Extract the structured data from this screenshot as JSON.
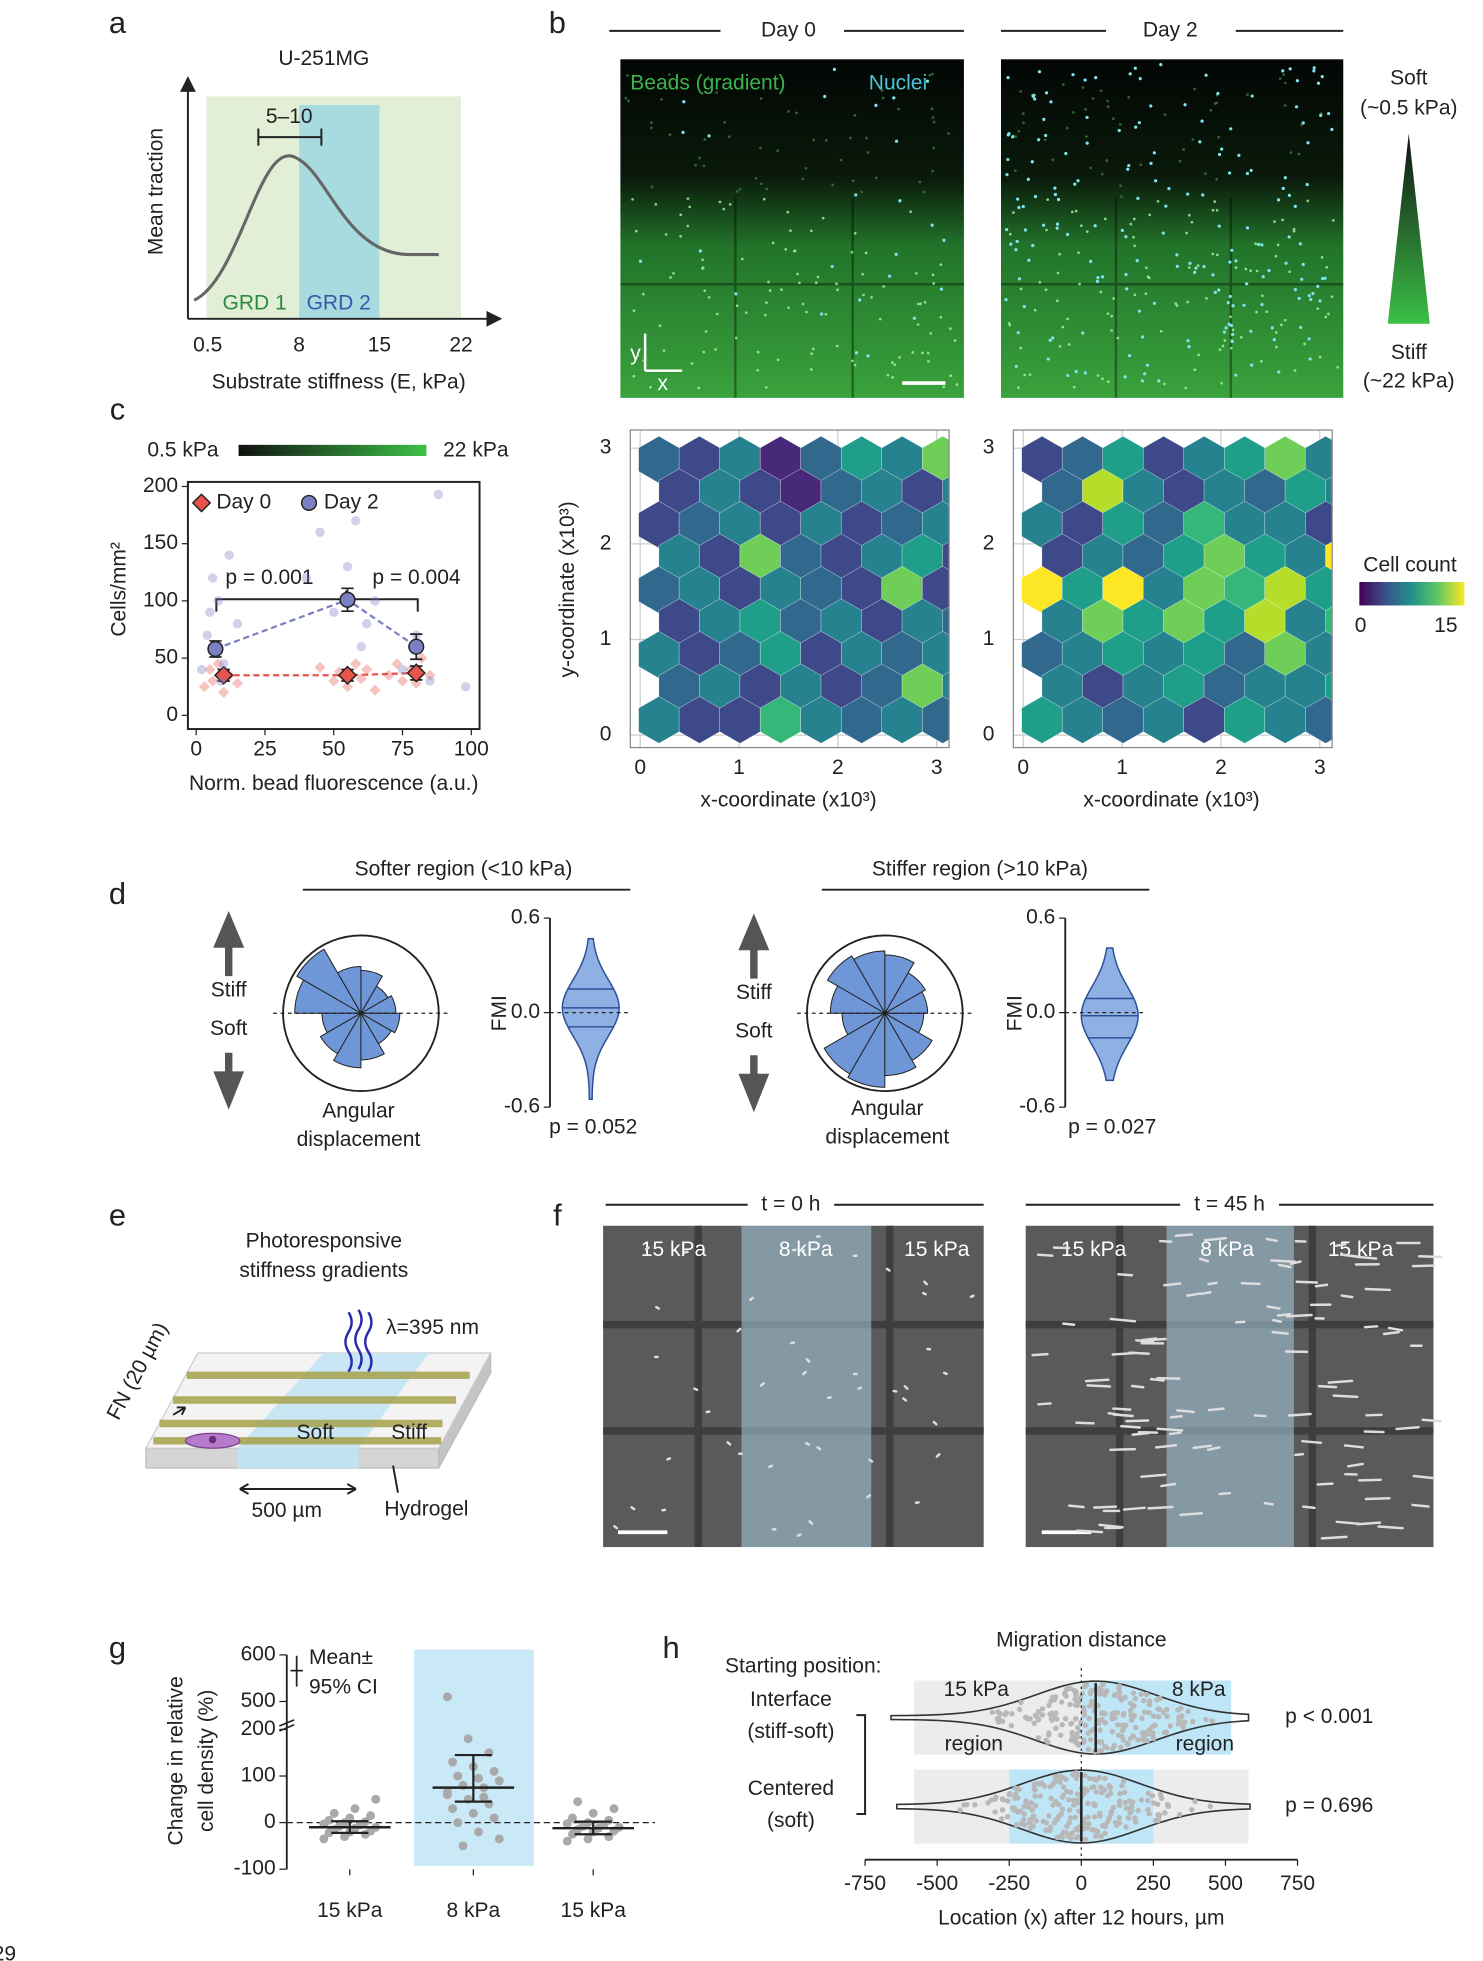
{
  "page_number": "29",
  "panel_labels": [
    "a",
    "b",
    "c",
    "d",
    "e",
    "f",
    "g",
    "h"
  ],
  "a": {
    "title": "U-251MG",
    "y_label": "Mean traction",
    "x_label": "Substrate stiffness (E, kPa)",
    "x_ticks": [
      "0.5",
      "8",
      "15",
      "22"
    ],
    "peak_range": "5–10",
    "regions": [
      "GRD 1",
      "GRD 2"
    ]
  },
  "b": {
    "columns": [
      "Day 0",
      "Day 2"
    ],
    "channels": [
      "Beads (gradient)",
      "Nuclei"
    ],
    "axes": [
      "y",
      "x"
    ],
    "soft": [
      "Soft",
      "(~0.5 kPa)"
    ],
    "stiff": [
      "Stiff",
      "(~22 kPa)"
    ],
    "hexbin": {
      "type": "hexbin",
      "x_label": "x-coordinate (x10³)",
      "y_label": "y-coordinate (x10³)",
      "xlim": [
        -0.1,
        3.125
      ],
      "ylim": [
        -0.13,
        3.19
      ],
      "xticks": [
        0,
        1,
        2,
        3
      ],
      "yticks": [
        0,
        1,
        2,
        3
      ],
      "colorbar_title": "Cell count",
      "clim": [
        0,
        15
      ],
      "panels": [
        {
          "counts": [
            [
              5,
              3,
              6,
              2,
              5,
              8,
              7,
              11
            ],
            [
              4,
              6,
              3,
              2,
              5,
              7,
              4,
              6
            ],
            [
              3,
              5,
              6,
              4,
              7,
              3,
              5,
              6
            ],
            [
              6,
              4,
              11,
              5,
              4,
              7,
              9,
              3
            ],
            [
              5,
              7,
              3,
              6,
              5,
              4,
              12,
              3
            ],
            [
              4,
              6,
              9,
              5,
              7,
              3,
              6,
              5
            ],
            [
              7,
              3,
              5,
              8,
              4,
              6,
              5,
              7
            ],
            [
              5,
              6,
              4,
              7,
              3,
              5,
              11,
              6
            ],
            [
              6,
              4,
              3,
              10,
              6,
              5,
              7,
              5
            ]
          ]
        },
        {
          "counts": [
            [
              4,
              5,
              9,
              3,
              6,
              8,
              12,
              7
            ],
            [
              5,
              13,
              6,
              4,
              7,
              5,
              9,
              6
            ],
            [
              6,
              4,
              8,
              5,
              10,
              6,
              7,
              4
            ],
            [
              4,
              7,
              5,
              9,
              11,
              8,
              6,
              15
            ],
            [
              15,
              9,
              15,
              7,
              12,
              10,
              13,
              8
            ],
            [
              6,
              11,
              8,
              12,
              9,
              13,
              7,
              10
            ],
            [
              5,
              7,
              9,
              6,
              8,
              5,
              11,
              6
            ],
            [
              7,
              4,
              6,
              8,
              5,
              7,
              6,
              9
            ],
            [
              9,
              6,
              5,
              7,
              4,
              8,
              6,
              5
            ]
          ]
        }
      ]
    }
  },
  "c": {
    "type": "scatter",
    "colorbar_labels": [
      "0.5 kPa",
      "22 kPa"
    ],
    "x_label": "Norm. bead fluorescence (a.u.)",
    "y_label": "Cells/mm²",
    "xlim": [
      -3,
      103
    ],
    "ylim": [
      -12,
      204
    ],
    "xticks": [
      0,
      25,
      50,
      75,
      100
    ],
    "yticks": [
      0,
      50,
      100,
      150,
      200
    ],
    "annotations": [
      "p = 0.001",
      "p = 0.004"
    ],
    "series": [
      {
        "name": "Day 0",
        "color": "#e8544a",
        "marker": "diamond",
        "x": [
          10,
          55,
          80
        ],
        "values": [
          35,
          35,
          37
        ],
        "errors": [
          5,
          5,
          6
        ],
        "points_x": [
          3,
          5,
          6,
          8,
          10,
          12,
          15,
          45,
          50,
          52,
          55,
          58,
          60,
          62,
          65,
          70,
          73,
          75,
          78,
          80,
          82,
          85
        ],
        "points_y": [
          25,
          40,
          30,
          45,
          20,
          35,
          28,
          42,
          30,
          38,
          25,
          45,
          32,
          40,
          22,
          35,
          45,
          30,
          40,
          28,
          50,
          35
        ]
      },
      {
        "name": "Day 2",
        "color": "#7b7fc4",
        "marker": "circle",
        "x": [
          7,
          55,
          80
        ],
        "values": [
          58,
          101,
          60
        ],
        "errors": [
          7,
          10,
          11
        ],
        "points_x": [
          2,
          4,
          5,
          6,
          7,
          8,
          9,
          10,
          12,
          15,
          40,
          45,
          50,
          55,
          58,
          60,
          62,
          65,
          75,
          80,
          85,
          88,
          98
        ],
        "points_y": [
          40,
          70,
          90,
          120,
          60,
          100,
          30,
          45,
          140,
          80,
          120,
          160,
          90,
          130,
          170,
          60,
          80,
          100,
          40,
          70,
          30,
          193,
          25
        ]
      }
    ]
  },
  "d": {
    "arrow_labels": [
      "Stiff",
      "Soft"
    ],
    "rose_label": [
      "Angular",
      "displacement"
    ],
    "violin_y_label": "FMI",
    "yticks": [
      0.6,
      {
        "value": 0,
        "label": "0.0"
      },
      -0.6
    ],
    "ylim": [
      -0.6,
      0.6
    ],
    "rlim": [
      0,
      1
    ],
    "groups": [
      {
        "title": "Softer region (<10 kPa)",
        "rose": [
          0.45,
          0.4,
          0.55,
          0.6,
          0.95,
          0.85,
          0.5,
          0.6,
          0.7,
          0.6,
          0.45,
          0.5
        ],
        "range": [
          -0.55,
          0.47
        ],
        "quartiles": [
          -0.09,
          0.03,
          0.15
        ],
        "p": "p = 0.052"
      },
      {
        "title": "Stiffer region (>10 kPa)",
        "rose": [
          0.55,
          0.6,
          0.75,
          0.8,
          0.85,
          0.7,
          0.55,
          0.9,
          0.95,
          0.8,
          0.7,
          0.5
        ],
        "range": [
          -0.43,
          0.41
        ],
        "quartiles": [
          -0.16,
          -0.02,
          0.09
        ],
        "p": "p = 0.027"
      }
    ]
  },
  "e": {
    "title": [
      "Photoresponsive",
      "stiffness gradients"
    ],
    "light": "λ=395 nm",
    "pattern": "FN (20 µm)",
    "soft": "Soft",
    "stiff": "Stiff",
    "width": "500 µm",
    "substrate": "Hydrogel"
  },
  "f": {
    "columns": [
      "t = 0 h",
      "t = 45 h"
    ],
    "regions": [
      "15 kPa",
      "8 kPa",
      "15 kPa"
    ]
  },
  "g": {
    "type": "dot",
    "y_label": [
      "Change in relative",
      "cell density (%)"
    ],
    "legend": [
      "Mean±",
      "95% CI"
    ],
    "categories": [
      "15 kPa",
      "8 kPa",
      "15 kPa"
    ],
    "ylim": [
      -100,
      600
    ],
    "axis_break": [
      210,
      450
    ],
    "yticks": [
      -100,
      0,
      100,
      200,
      500,
      600
    ],
    "means": [
      -10,
      75,
      -12
    ],
    "ci_low": [
      -22,
      45,
      -25
    ],
    "ci_high": [
      3,
      145,
      2
    ],
    "points": [
      [
        -35,
        -30,
        -25,
        -22,
        -20,
        -18,
        -15,
        -12,
        -10,
        -8,
        -5,
        -3,
        0,
        2,
        5,
        10,
        15,
        20,
        30,
        50
      ],
      [
        510,
        180,
        150,
        130,
        120,
        110,
        100,
        95,
        90,
        80,
        75,
        60,
        50,
        40,
        30,
        20,
        10,
        0,
        -20,
        -35,
        -50,
        55,
        65
      ],
      [
        -40,
        -35,
        -30,
        -25,
        -20,
        -18,
        -15,
        -12,
        -10,
        -8,
        -5,
        -2,
        0,
        5,
        10,
        20,
        30,
        45
      ]
    ]
  },
  "h": {
    "type": "violin",
    "title": "Migration distance",
    "row_title": "Starting position:",
    "x_label": "Location (x) after 12 hours, µm",
    "xlim": [
      -750,
      750
    ],
    "xticks": [
      -750,
      -500,
      -250,
      0,
      250,
      500,
      750
    ],
    "region_labels": [
      "15 kPa",
      "8 kPa",
      "region",
      "region"
    ],
    "rows": [
      {
        "name": [
          "Interface",
          "(stiff-soft)"
        ],
        "gray": [
          -580,
          0
        ],
        "blue": [
          0,
          520
        ],
        "range": [
          -660,
          580
        ],
        "median": 50,
        "p": "p < 0.001"
      },
      {
        "name": [
          "Centered",
          "(soft)"
        ],
        "gray": [
          -580,
          580
        ],
        "blue": [
          -250,
          250
        ],
        "range": [
          -640,
          585
        ],
        "median": 0,
        "p": "p = 0.696"
      }
    ]
  }
}
